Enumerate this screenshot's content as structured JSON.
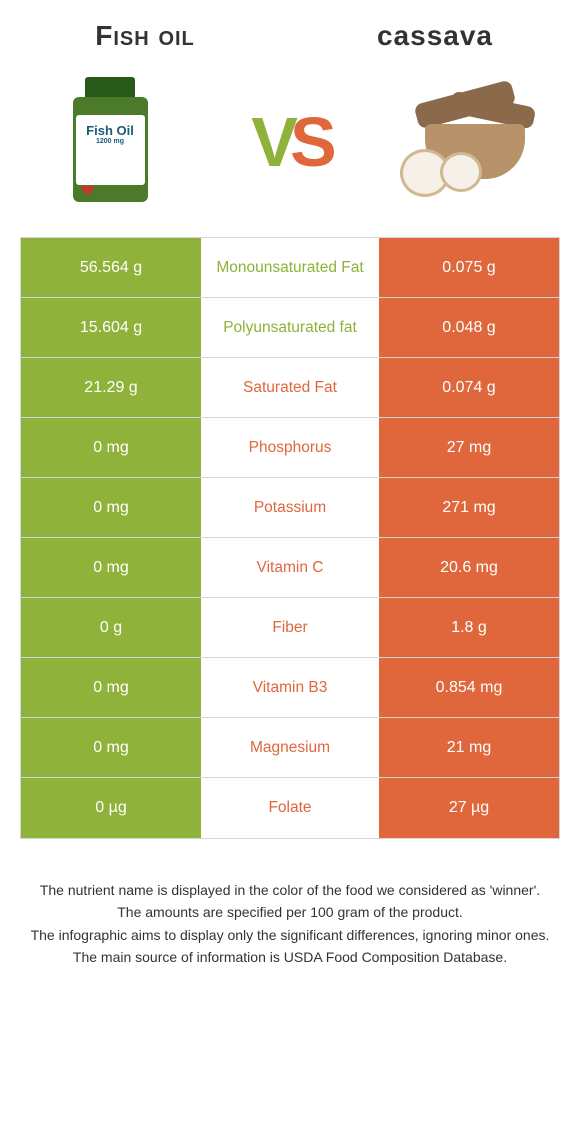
{
  "header": {
    "left_title": "Fish oil",
    "right_title": "cassava",
    "vs_v": "V",
    "vs_s": "S",
    "bottle_brand": "Fish Oil",
    "bottle_mg": "1200 mg"
  },
  "colors": {
    "left": "#8fb23a",
    "right": "#e0673c",
    "border": "#d5d5d5"
  },
  "rows": [
    {
      "nutrient": "Monounsaturated Fat",
      "left": "56.564 g",
      "right": "0.075 g",
      "winner": "left"
    },
    {
      "nutrient": "Polyunsaturated fat",
      "left": "15.604 g",
      "right": "0.048 g",
      "winner": "left"
    },
    {
      "nutrient": "Saturated Fat",
      "left": "21.29 g",
      "right": "0.074 g",
      "winner": "right"
    },
    {
      "nutrient": "Phosphorus",
      "left": "0 mg",
      "right": "27 mg",
      "winner": "right"
    },
    {
      "nutrient": "Potassium",
      "left": "0 mg",
      "right": "271 mg",
      "winner": "right"
    },
    {
      "nutrient": "Vitamin C",
      "left": "0 mg",
      "right": "20.6 mg",
      "winner": "right"
    },
    {
      "nutrient": "Fiber",
      "left": "0 g",
      "right": "1.8 g",
      "winner": "right"
    },
    {
      "nutrient": "Vitamin B3",
      "left": "0 mg",
      "right": "0.854 mg",
      "winner": "right"
    },
    {
      "nutrient": "Magnesium",
      "left": "0 mg",
      "right": "21 mg",
      "winner": "right"
    },
    {
      "nutrient": "Folate",
      "left": "0 µg",
      "right": "27 µg",
      "winner": "right"
    }
  ],
  "footer": {
    "line1": "The nutrient name is displayed in the color of the food we considered as 'winner'.",
    "line2": "The amounts are specified per 100 gram of the product.",
    "line3": "The infographic aims to display only the significant differences, ignoring minor ones.",
    "line4": "The main source of information is USDA Food Composition Database."
  }
}
